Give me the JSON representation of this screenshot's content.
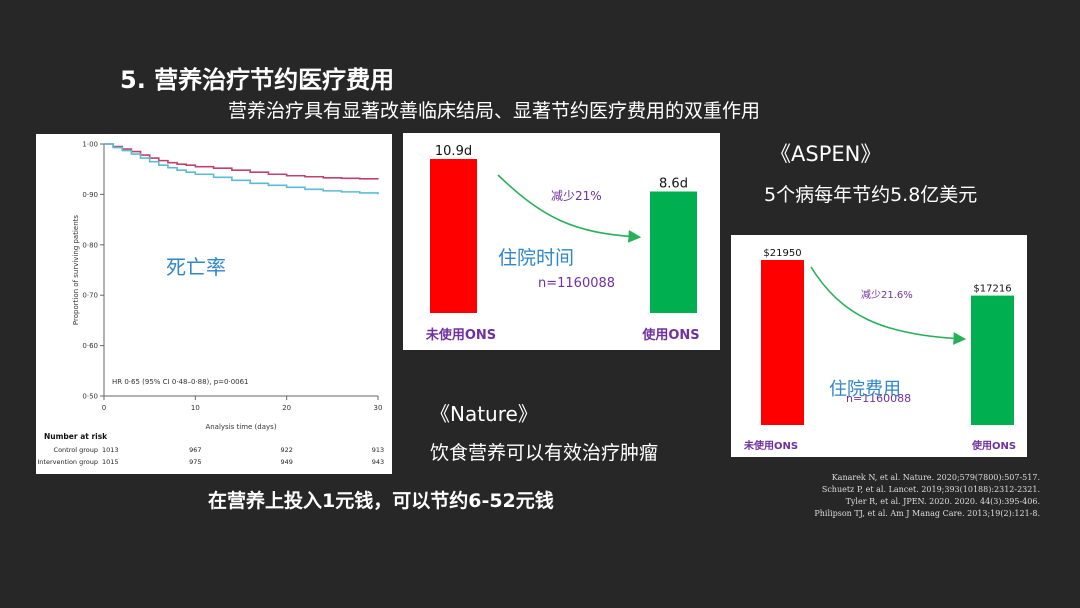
{
  "slide": {
    "title": "5. 营养治疗节约医疗费用",
    "subtitle": "营养治疗具有显著改善临床结局、显著节约医疗费用的双重作用",
    "aspen_ref": "《ASPEN》",
    "aspen_claim": "5个病每年节约5.8亿美元",
    "nature_ref": "《Nature》",
    "nature_claim": "饮食营养可以有效治疗肿瘤",
    "bottom_claim": "在营养上投入1元钱，可以节约6-52元钱",
    "references": [
      "Kanarek N, et al. Nature. 2020;579(7800):507-517.",
      "Schuetz P, et al. Lancet. 2019;393(10188):2312-2321.",
      "Tyler R, et al. JPEN. 2020. 2020. 44(3):395-406.",
      "Philipson TJ, et al. Am J Manag Care. 2013;19(2):121-8."
    ]
  },
  "colors": {
    "control": "#c2416b",
    "intervention": "#5bbbd6",
    "bar_red": "#ff0000",
    "bar_green": "#00b050",
    "arrow_green": "#27b05a",
    "label_blue": "#2f86c8",
    "label_purple": "#7030a0"
  },
  "chart_data": [
    {
      "type": "line",
      "overlay_label": "死亡率",
      "ylabel": "Proportion of surviving patients",
      "xlabel": "Analysis time (days)",
      "xlim": [
        0,
        30
      ],
      "ylim": [
        0.5,
        1.0
      ],
      "x_ticks": [
        "0",
        "10",
        "20",
        "30"
      ],
      "y_ticks": [
        "0·50",
        "0·60",
        "0·70",
        "0·80",
        "0·90",
        "1·00"
      ],
      "annotation": "HR 0·65 (95% CI 0·48–0·88), p=0·0061",
      "series": [
        {
          "key": "control",
          "x": [
            0,
            1,
            2,
            3,
            4,
            5,
            6,
            7,
            8,
            9,
            10,
            12,
            14,
            16,
            18,
            20,
            22,
            24,
            26,
            28,
            30
          ],
          "values": [
            1.0,
            0.995,
            0.99,
            0.985,
            0.978,
            0.972,
            0.967,
            0.963,
            0.96,
            0.958,
            0.955,
            0.952,
            0.948,
            0.944,
            0.94,
            0.937,
            0.935,
            0.933,
            0.932,
            0.931,
            0.93
          ]
        },
        {
          "key": "intervention",
          "x": [
            0,
            1,
            2,
            3,
            4,
            5,
            6,
            7,
            8,
            9,
            10,
            12,
            14,
            16,
            18,
            20,
            22,
            24,
            26,
            28,
            30
          ],
          "values": [
            1.0,
            0.993,
            0.987,
            0.98,
            0.972,
            0.965,
            0.958,
            0.953,
            0.948,
            0.944,
            0.94,
            0.934,
            0.928,
            0.922,
            0.918,
            0.914,
            0.91,
            0.907,
            0.905,
            0.903,
            0.9
          ]
        }
      ],
      "risk_table": {
        "title": "Number at risk",
        "rows": [
          {
            "label": "Control group",
            "values": [
              "1013",
              "967",
              "922",
              "913"
            ]
          },
          {
            "label": "Intervention group",
            "values": [
              "1015",
              "975",
              "949",
              "943"
            ]
          }
        ]
      }
    },
    {
      "type": "bar",
      "overlay_label": "住院时间",
      "n_label": "n=1160088",
      "reduction_label": "减少21%",
      "categories": [
        "未使用ONS",
        "使用ONS"
      ],
      "values": [
        10.9,
        8.6
      ],
      "value_labels": [
        "10.9d",
        "8.6d"
      ],
      "ylim": [
        0,
        10.9
      ]
    },
    {
      "type": "bar",
      "overlay_label": "住院费用",
      "n_label": "n=1160088",
      "reduction_label": "减少21.6%",
      "categories": [
        "未使用ONS",
        "使用ONS"
      ],
      "values": [
        21950,
        17216
      ],
      "value_labels": [
        "$21950",
        "$17216"
      ],
      "ylim": [
        0,
        21950
      ]
    }
  ]
}
